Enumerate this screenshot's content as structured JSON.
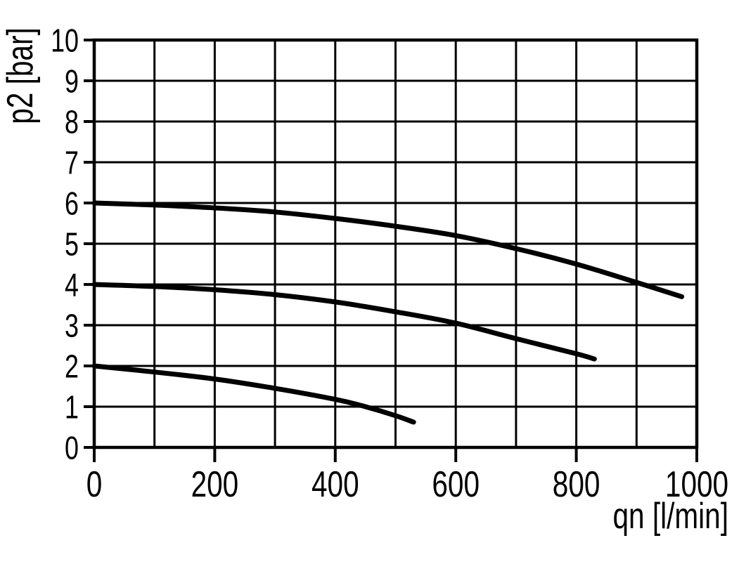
{
  "chart_data": {
    "type": "line",
    "title": "",
    "xlabel": "qn [l/min]",
    "ylabel": "p2 [bar]",
    "xlim": [
      0,
      1000
    ],
    "ylim": [
      0,
      10
    ],
    "x_tick_labels": [
      "0",
      "200",
      "400",
      "600",
      "800",
      "1000"
    ],
    "x_tick_values": [
      0,
      200,
      400,
      600,
      800,
      1000
    ],
    "y_tick_labels": [
      "0",
      "1",
      "2",
      "3",
      "4",
      "5",
      "6",
      "7",
      "8",
      "9",
      "10"
    ],
    "y_tick_values": [
      0,
      1,
      2,
      3,
      4,
      5,
      6,
      7,
      8,
      9,
      10
    ],
    "x_gridline_step": 100,
    "y_gridline_step": 1,
    "grid": "on",
    "legend": "none",
    "line_color": "#000000",
    "grid_color": "#000000",
    "background_color": "#ffffff",
    "series": [
      {
        "name": "outlet-pressure-curve-6-bar",
        "points": [
          [
            0,
            6.0
          ],
          [
            100,
            5.95
          ],
          [
            200,
            5.88
          ],
          [
            300,
            5.78
          ],
          [
            400,
            5.62
          ],
          [
            500,
            5.43
          ],
          [
            600,
            5.2
          ],
          [
            700,
            4.88
          ],
          [
            800,
            4.5
          ],
          [
            900,
            4.05
          ],
          [
            975,
            3.7
          ]
        ]
      },
      {
        "name": "outlet-pressure-curve-4-bar",
        "points": [
          [
            0,
            4.0
          ],
          [
            100,
            3.95
          ],
          [
            200,
            3.87
          ],
          [
            300,
            3.75
          ],
          [
            400,
            3.57
          ],
          [
            500,
            3.33
          ],
          [
            600,
            3.05
          ],
          [
            700,
            2.67
          ],
          [
            800,
            2.3
          ],
          [
            830,
            2.17
          ]
        ]
      },
      {
        "name": "outlet-pressure-curve-2-bar",
        "points": [
          [
            0,
            2.0
          ],
          [
            100,
            1.85
          ],
          [
            200,
            1.68
          ],
          [
            300,
            1.45
          ],
          [
            400,
            1.18
          ],
          [
            450,
            1.0
          ],
          [
            500,
            0.78
          ],
          [
            530,
            0.62
          ]
        ]
      }
    ]
  }
}
